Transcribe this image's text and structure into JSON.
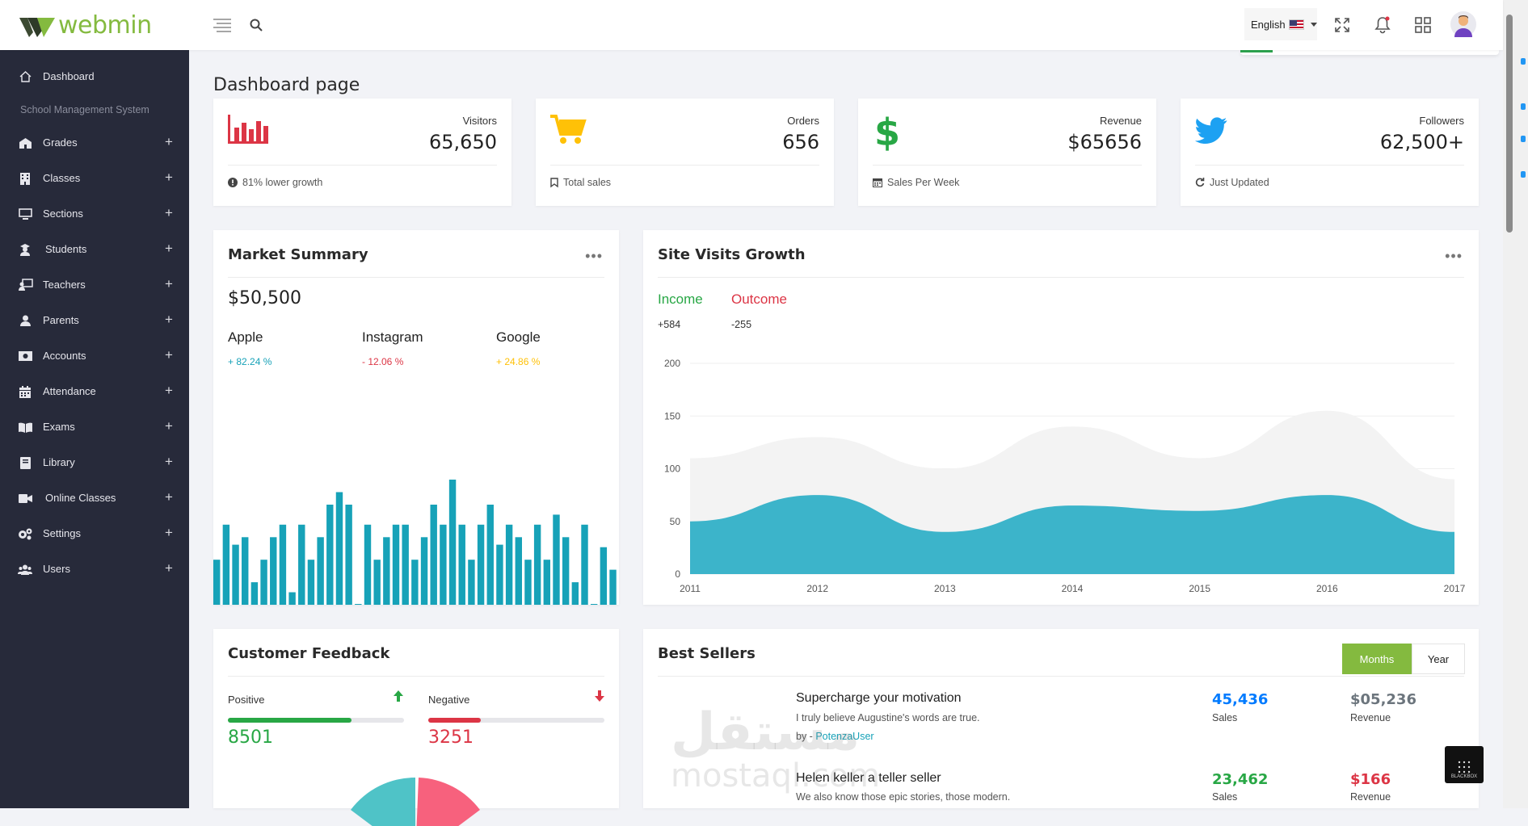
{
  "brand": {
    "name": "webmin",
    "accent": "#84ba3f"
  },
  "topbar": {
    "language": "English"
  },
  "sidebar": {
    "heading": "School Management System",
    "items": [
      {
        "label": "Dashboard",
        "icon": "home-icon",
        "expandable": false
      },
      {
        "label": "Grades",
        "icon": "school-icon",
        "expandable": true
      },
      {
        "label": "Classes",
        "icon": "building-icon",
        "expandable": true
      },
      {
        "label": "Sections",
        "icon": "monitor-icon",
        "expandable": true
      },
      {
        "label": "Students",
        "icon": "graduate-icon",
        "expandable": true
      },
      {
        "label": "Teachers",
        "icon": "teacher-icon",
        "expandable": true
      },
      {
        "label": "Parents",
        "icon": "user-icon",
        "expandable": true
      },
      {
        "label": "Accounts",
        "icon": "money-icon",
        "expandable": true
      },
      {
        "label": "Attendance",
        "icon": "calendar-icon",
        "expandable": true
      },
      {
        "label": "Exams",
        "icon": "book-open-icon",
        "expandable": true
      },
      {
        "label": "Library",
        "icon": "book-icon",
        "expandable": true
      },
      {
        "label": "Online Classes",
        "icon": "video-icon",
        "expandable": true
      },
      {
        "label": "Settings",
        "icon": "gears-icon",
        "expandable": true
      },
      {
        "label": "Users",
        "icon": "users-icon",
        "expandable": true
      }
    ],
    "plus_glyph": "+"
  },
  "page": {
    "title": "Dashboard page"
  },
  "stats": [
    {
      "label": "Visitors",
      "value": "65,650",
      "foot": "81% lower growth",
      "icon": "bar-chart-icon",
      "color": "#dc3545"
    },
    {
      "label": "Orders",
      "value": "656",
      "foot": "Total sales",
      "icon": "cart-icon",
      "color": "#ffc107"
    },
    {
      "label": "Revenue",
      "value": "$65656",
      "foot": "Sales Per Week",
      "icon": "dollar-icon",
      "color": "#28a745"
    },
    {
      "label": "Followers",
      "value": "62,500+",
      "foot": "Just Updated",
      "icon": "twitter-icon",
      "color": "#1da1f2"
    }
  ],
  "market_summary": {
    "title": "Market Summary",
    "total": "$50,500",
    "brands": [
      {
        "name": "Apple",
        "change": "+ 82.24 %",
        "color": "#17a2b8"
      },
      {
        "name": "Instagram",
        "change": "- 12.06 %",
        "color": "#dc3545"
      },
      {
        "name": "Google",
        "change": "+ 24.86 %",
        "color": "#ffc107"
      }
    ]
  },
  "site_visits": {
    "title": "Site Visits Growth",
    "income": {
      "label": "Income",
      "value": "+584",
      "color": "#28a745"
    },
    "outcome": {
      "label": "Outcome",
      "value": "-255",
      "color": "#dc3545"
    }
  },
  "customer_feedback": {
    "title": "Customer Feedback",
    "positive": {
      "label": "Positive",
      "value": "8501",
      "fill": 0.7,
      "color": "#28a745"
    },
    "negative": {
      "label": "Negative",
      "value": "3251",
      "fill": 0.3,
      "color": "#dc3545"
    }
  },
  "best_sellers": {
    "title": "Best Sellers",
    "tabs": {
      "months": "Months",
      "year": "Year"
    },
    "items": [
      {
        "title": "Supercharge your motivation",
        "desc": "I truly believe Augustine's words are true.",
        "by_prefix": "by - ",
        "by_user": "PotenzaUser",
        "sales": "45,436",
        "sales_label": "Sales",
        "sales_color": "#007bff",
        "revenue": "$05,236",
        "revenue_label": "Revenue",
        "revenue_color": "#6c757d"
      },
      {
        "title": "Helen keller a teller seller",
        "desc": "We also know those epic stories, those modern.",
        "sales": "23,462",
        "sales_label": "Sales",
        "sales_color": "#28a745",
        "revenue": "$166",
        "revenue_label": "Revenue",
        "revenue_color": "#dc3545"
      }
    ]
  },
  "watermark": {
    "arabic": "مستقل",
    "latin": "mostaql.com"
  },
  "badge": {
    "text": "BLACKBOX"
  },
  "chart_data": [
    {
      "type": "bar",
      "title": "",
      "color": "#17a2b8",
      "ylim": [
        0,
        100
      ],
      "values": [
        36,
        64,
        48,
        54,
        18,
        36,
        54,
        64,
        10,
        64,
        36,
        54,
        80,
        90,
        80,
        0,
        64,
        36,
        54,
        64,
        64,
        36,
        54,
        80,
        64,
        100,
        64,
        36,
        64,
        80,
        48,
        64,
        54,
        36,
        64,
        36,
        72,
        54,
        18,
        64,
        0,
        46,
        28
      ]
    },
    {
      "type": "area",
      "title": "",
      "x": [
        2011,
        2012,
        2013,
        2014,
        2015,
        2016,
        2017
      ],
      "ylim": [
        0,
        200
      ],
      "yticks": [
        0,
        50,
        100,
        150,
        200
      ],
      "grid": true,
      "series": [
        {
          "values": [
            110,
            130,
            100,
            140,
            110,
            155,
            90
          ],
          "color": "#f3f3f3"
        },
        {
          "values": [
            50,
            75,
            40,
            65,
            60,
            75,
            40
          ],
          "color": "#3cb4ca"
        }
      ]
    }
  ]
}
